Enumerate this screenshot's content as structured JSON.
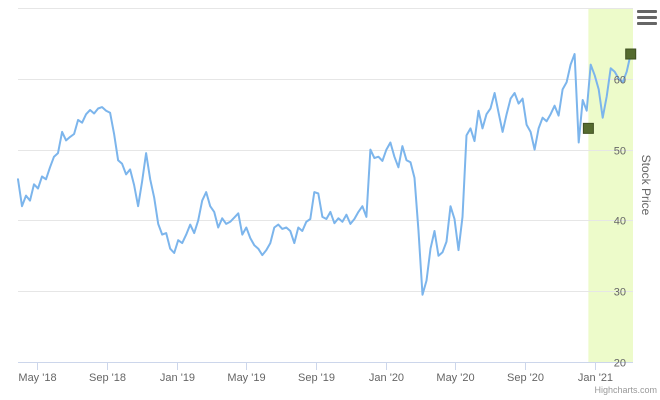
{
  "chart_data": {
    "type": "line",
    "title": "",
    "xlabel": "",
    "ylabel": "Stock Price",
    "ylim": [
      20,
      70
    ],
    "y_ticks": [
      20,
      30,
      40,
      50,
      60
    ],
    "x_tick_labels": [
      "May '18",
      "Sep '18",
      "Jan '19",
      "May '19",
      "Sep '19",
      "Jan '20",
      "May '20",
      "Sep '20",
      "Jan '21"
    ],
    "x_tick_dates": [
      "2018-05-01",
      "2018-09-01",
      "2019-01-01",
      "2019-05-01",
      "2019-09-01",
      "2020-01-01",
      "2020-05-01",
      "2020-09-01",
      "2021-01-01"
    ],
    "x_range": [
      "2018-03-29",
      "2021-03-08"
    ],
    "grid": "horizontal",
    "legend": "none",
    "line_color": "#7cb5ec",
    "series": [
      {
        "x": [
          "2018-03-29",
          "2018-04-05",
          "2018-04-12",
          "2018-04-19",
          "2018-04-26",
          "2018-05-03",
          "2018-05-10",
          "2018-05-17",
          "2018-05-24",
          "2018-05-31",
          "2018-06-07",
          "2018-06-14",
          "2018-06-21",
          "2018-06-28",
          "2018-07-05",
          "2018-07-12",
          "2018-07-19",
          "2018-07-26",
          "2018-08-02",
          "2018-08-09",
          "2018-08-16",
          "2018-08-23",
          "2018-08-30",
          "2018-09-06",
          "2018-09-13",
          "2018-09-20",
          "2018-09-27",
          "2018-10-04",
          "2018-10-11",
          "2018-10-18",
          "2018-10-25",
          "2018-11-01",
          "2018-11-08",
          "2018-11-15",
          "2018-11-22",
          "2018-11-29",
          "2018-12-06",
          "2018-12-13",
          "2018-12-20",
          "2018-12-27",
          "2019-01-03",
          "2019-01-10",
          "2019-01-17",
          "2019-01-24",
          "2019-01-31",
          "2019-02-07",
          "2019-02-14",
          "2019-02-21",
          "2019-02-28",
          "2019-03-07",
          "2019-03-14",
          "2019-03-21",
          "2019-03-28",
          "2019-04-04",
          "2019-04-11",
          "2019-04-18",
          "2019-04-25",
          "2019-05-02",
          "2019-05-09",
          "2019-05-16",
          "2019-05-23",
          "2019-05-30",
          "2019-06-06",
          "2019-06-13",
          "2019-06-20",
          "2019-06-27",
          "2019-07-04",
          "2019-07-11",
          "2019-07-18",
          "2019-07-25",
          "2019-08-01",
          "2019-08-08",
          "2019-08-15",
          "2019-08-22",
          "2019-08-29",
          "2019-09-05",
          "2019-09-12",
          "2019-09-19",
          "2019-09-26",
          "2019-10-03",
          "2019-10-10",
          "2019-10-17",
          "2019-10-24",
          "2019-10-31",
          "2019-11-07",
          "2019-11-14",
          "2019-11-21",
          "2019-11-28",
          "2019-12-05",
          "2019-12-12",
          "2019-12-19",
          "2019-12-26",
          "2020-01-02",
          "2020-01-09",
          "2020-01-16",
          "2020-01-23",
          "2020-01-30",
          "2020-02-06",
          "2020-02-13",
          "2020-02-20",
          "2020-02-27",
          "2020-03-05",
          "2020-03-12",
          "2020-03-19",
          "2020-03-26",
          "2020-04-02",
          "2020-04-09",
          "2020-04-16",
          "2020-04-23",
          "2020-04-30",
          "2020-05-07",
          "2020-05-14",
          "2020-05-21",
          "2020-05-28",
          "2020-06-04",
          "2020-06-11",
          "2020-06-18",
          "2020-06-25",
          "2020-07-02",
          "2020-07-09",
          "2020-07-16",
          "2020-07-23",
          "2020-07-30",
          "2020-08-06",
          "2020-08-13",
          "2020-08-20",
          "2020-08-27",
          "2020-09-03",
          "2020-09-10",
          "2020-09-17",
          "2020-09-24",
          "2020-10-01",
          "2020-10-08",
          "2020-10-15",
          "2020-10-22",
          "2020-10-29",
          "2020-11-05",
          "2020-11-12",
          "2020-11-19",
          "2020-11-26",
          "2020-12-03",
          "2020-12-10",
          "2020-12-17",
          "2020-12-24",
          "2020-12-31",
          "2021-01-07",
          "2021-01-14",
          "2021-01-21",
          "2021-01-28",
          "2021-02-04",
          "2021-02-11",
          "2021-02-18",
          "2021-02-25",
          "2021-03-04"
        ],
        "values": [
          45.8,
          42.0,
          43.5,
          42.8,
          45.1,
          44.5,
          46.2,
          45.8,
          47.5,
          49.0,
          49.5,
          52.5,
          51.3,
          51.8,
          52.2,
          54.2,
          53.8,
          55.0,
          55.6,
          55.1,
          55.8,
          56.0,
          55.5,
          55.2,
          52.2,
          48.5,
          48.0,
          46.5,
          47.2,
          45.0,
          42.0,
          45.5,
          49.5,
          45.8,
          43.2,
          39.5,
          38.0,
          38.2,
          36.0,
          35.4,
          37.2,
          36.8,
          38.0,
          39.4,
          38.2,
          40.0,
          42.8,
          44.0,
          42.0,
          41.2,
          39.0,
          40.3,
          39.5,
          39.8,
          40.4,
          41.0,
          38.0,
          39.0,
          37.5,
          36.5,
          36.0,
          35.1,
          35.8,
          36.8,
          39.0,
          39.4,
          38.8,
          39.0,
          38.5,
          36.8,
          39.0,
          38.5,
          39.8,
          40.2,
          44.0,
          43.8,
          40.5,
          40.2,
          41.2,
          39.6,
          40.3,
          39.8,
          40.8,
          39.5,
          40.2,
          41.2,
          42.0,
          40.5,
          50.0,
          48.8,
          49.0,
          48.4,
          50.0,
          51.0,
          49.0,
          47.5,
          50.5,
          48.5,
          48.2,
          46.0,
          38.5,
          29.5,
          31.5,
          36.0,
          38.5,
          35.0,
          35.5,
          37.0,
          42.0,
          40.2,
          35.8,
          40.5,
          52.0,
          53.0,
          51.2,
          55.5,
          53.0,
          55.0,
          55.8,
          58.0,
          55.2,
          52.5,
          55.0,
          57.2,
          58.0,
          56.5,
          57.2,
          53.5,
          52.5,
          50.0,
          53.0,
          54.5,
          54.0,
          55.0,
          56.2,
          54.8,
          58.5,
          59.5,
          62.0,
          63.5,
          51.0,
          57.0,
          55.5,
          62.0,
          60.5,
          58.5,
          54.5,
          57.5,
          61.5,
          61.0,
          60.0,
          59.5,
          61.0,
          63.5
        ]
      }
    ],
    "highlight_band": {
      "from": "2020-12-20",
      "to": "2021-03-08",
      "color": "#edfbca"
    },
    "markers": [
      {
        "x": "2020-12-20",
        "y": 53.0,
        "color": "#556b2f"
      },
      {
        "x": "2021-03-04",
        "y": 63.5,
        "color": "#556b2f"
      }
    ]
  },
  "ui": {
    "credits": "Highcharts.com",
    "menu_icon": "hamburger-menu-icon"
  }
}
